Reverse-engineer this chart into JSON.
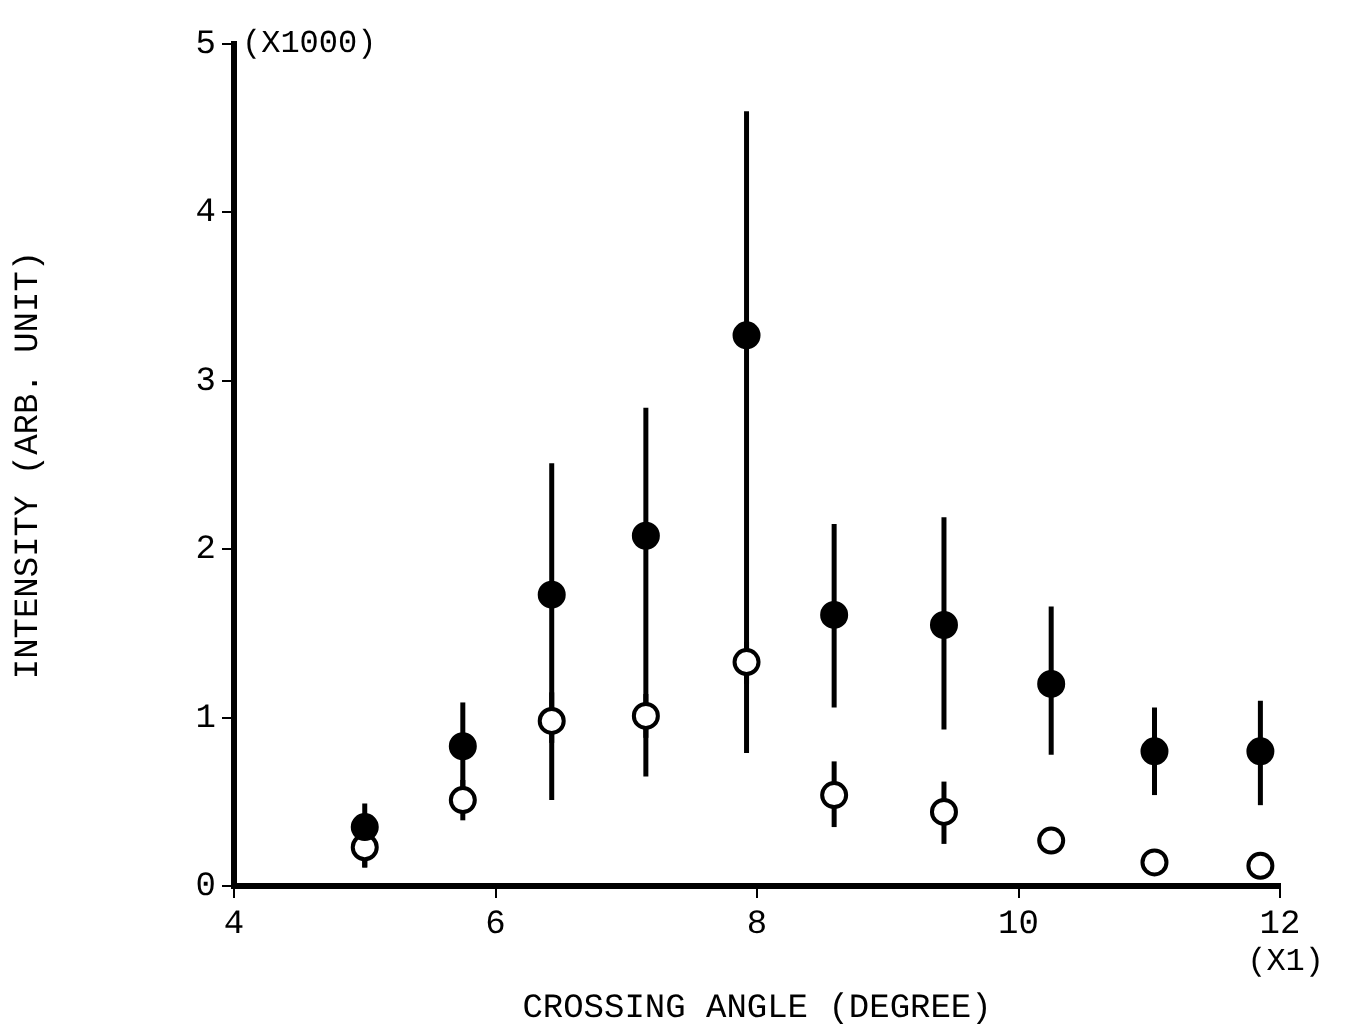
{
  "chart_data": {
    "type": "scatter",
    "xlabel": "CROSSING ANGLE (DEGREE)",
    "ylabel": "INTENSITY (ARB. UNIT)",
    "annotations": [
      "(X1000)",
      "(X1)"
    ],
    "xlim": [
      4,
      12
    ],
    "xticks": [
      4,
      6,
      8,
      10,
      12
    ],
    "ylim": [
      0,
      5
    ],
    "yticks": [
      0,
      1,
      2,
      3,
      4,
      5
    ],
    "grid": false,
    "legend": false,
    "marker": "circle",
    "series": [
      {
        "color": "#000000",
        "x": [
          5.0,
          5.75,
          6.43,
          7.15,
          7.92,
          8.59,
          9.43,
          10.25,
          11.04,
          11.85
        ],
        "values": [
          0.35,
          0.83,
          1.73,
          2.08,
          3.27,
          1.61,
          1.55,
          1.2,
          0.8,
          0.8
        ],
        "errors": [
          [
            0.11,
            0.49
          ],
          [
            0.55,
            1.09
          ],
          [
            0.51,
            2.51
          ],
          [
            0.65,
            2.84
          ],
          [
            0.79,
            4.6
          ],
          [
            1.06,
            2.15
          ],
          [
            0.93,
            2.19
          ],
          [
            0.78,
            1.66
          ],
          [
            0.54,
            1.06
          ],
          [
            0.48,
            1.1
          ]
        ]
      },
      {
        "color": "#000000",
        "x": [
          5.0,
          5.75,
          6.43,
          7.15,
          7.92,
          8.59,
          9.43,
          10.25,
          11.04,
          11.85
        ],
        "values": [
          0.23,
          0.51,
          0.98,
          1.01,
          1.33,
          0.54,
          0.44,
          0.27,
          0.14,
          0.12
        ],
        "errors": [
          [
            0.11,
            0.23
          ],
          [
            0.39,
            0.63
          ],
          [
            0.85,
            1.15
          ],
          [
            0.88,
            1.14
          ],
          [
            1.2,
            1.45
          ],
          [
            0.35,
            0.74
          ],
          [
            0.25,
            0.62
          ],
          [
            0.22,
            0.32
          ],
          [
            0.1,
            0.18
          ],
          [
            0.08,
            0.16
          ]
        ]
      }
    ]
  }
}
